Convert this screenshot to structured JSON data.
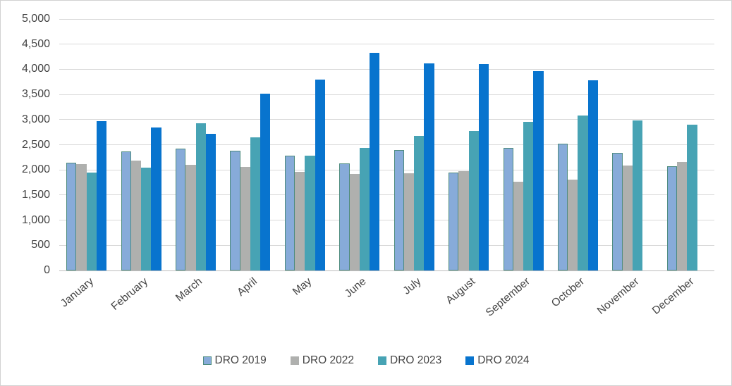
{
  "chart_data": {
    "type": "bar",
    "title": "",
    "xlabel": "",
    "ylabel": "",
    "categories": [
      "January",
      "February",
      "March",
      "April",
      "May",
      "June",
      "July",
      "August",
      "September",
      "October",
      "November",
      "December"
    ],
    "series": [
      {
        "name": "DRO 2019",
        "color": "#87abd9",
        "border_color": "#4e8c7f",
        "values": [
          2140,
          2370,
          2430,
          2380,
          2280,
          2130,
          2390,
          1950,
          2440,
          2520,
          2340,
          2070
        ]
      },
      {
        "name": "DRO 2022",
        "color": "#afb0ae",
        "border_color": null,
        "values": [
          2110,
          2180,
          2100,
          2060,
          1960,
          1920,
          1930,
          1980,
          1760,
          1810,
          2090,
          2160
        ]
      },
      {
        "name": "DRO 2023",
        "color": "#47a3b4",
        "border_color": null,
        "values": [
          1940,
          2050,
          2930,
          2650,
          2290,
          2440,
          2670,
          2770,
          2950,
          3080,
          2980,
          2900
        ]
      },
      {
        "name": "DRO 2024",
        "color": "#0874ce",
        "border_color": null,
        "values": [
          2970,
          2850,
          2720,
          3510,
          3790,
          4330,
          4120,
          4100,
          3960,
          3780,
          null,
          null
        ]
      }
    ],
    "ylim": [
      0,
      5000
    ],
    "ytick_step": 500,
    "ytick_labels": [
      "0",
      "500",
      "1,000",
      "1,500",
      "2,000",
      "2,500",
      "3,000",
      "3,500",
      "4,000",
      "4,500",
      "5,000"
    ],
    "grid": true,
    "legend_position": "bottom",
    "axis_text_color": "#444444",
    "gridline_color": "#d9d9d9"
  }
}
